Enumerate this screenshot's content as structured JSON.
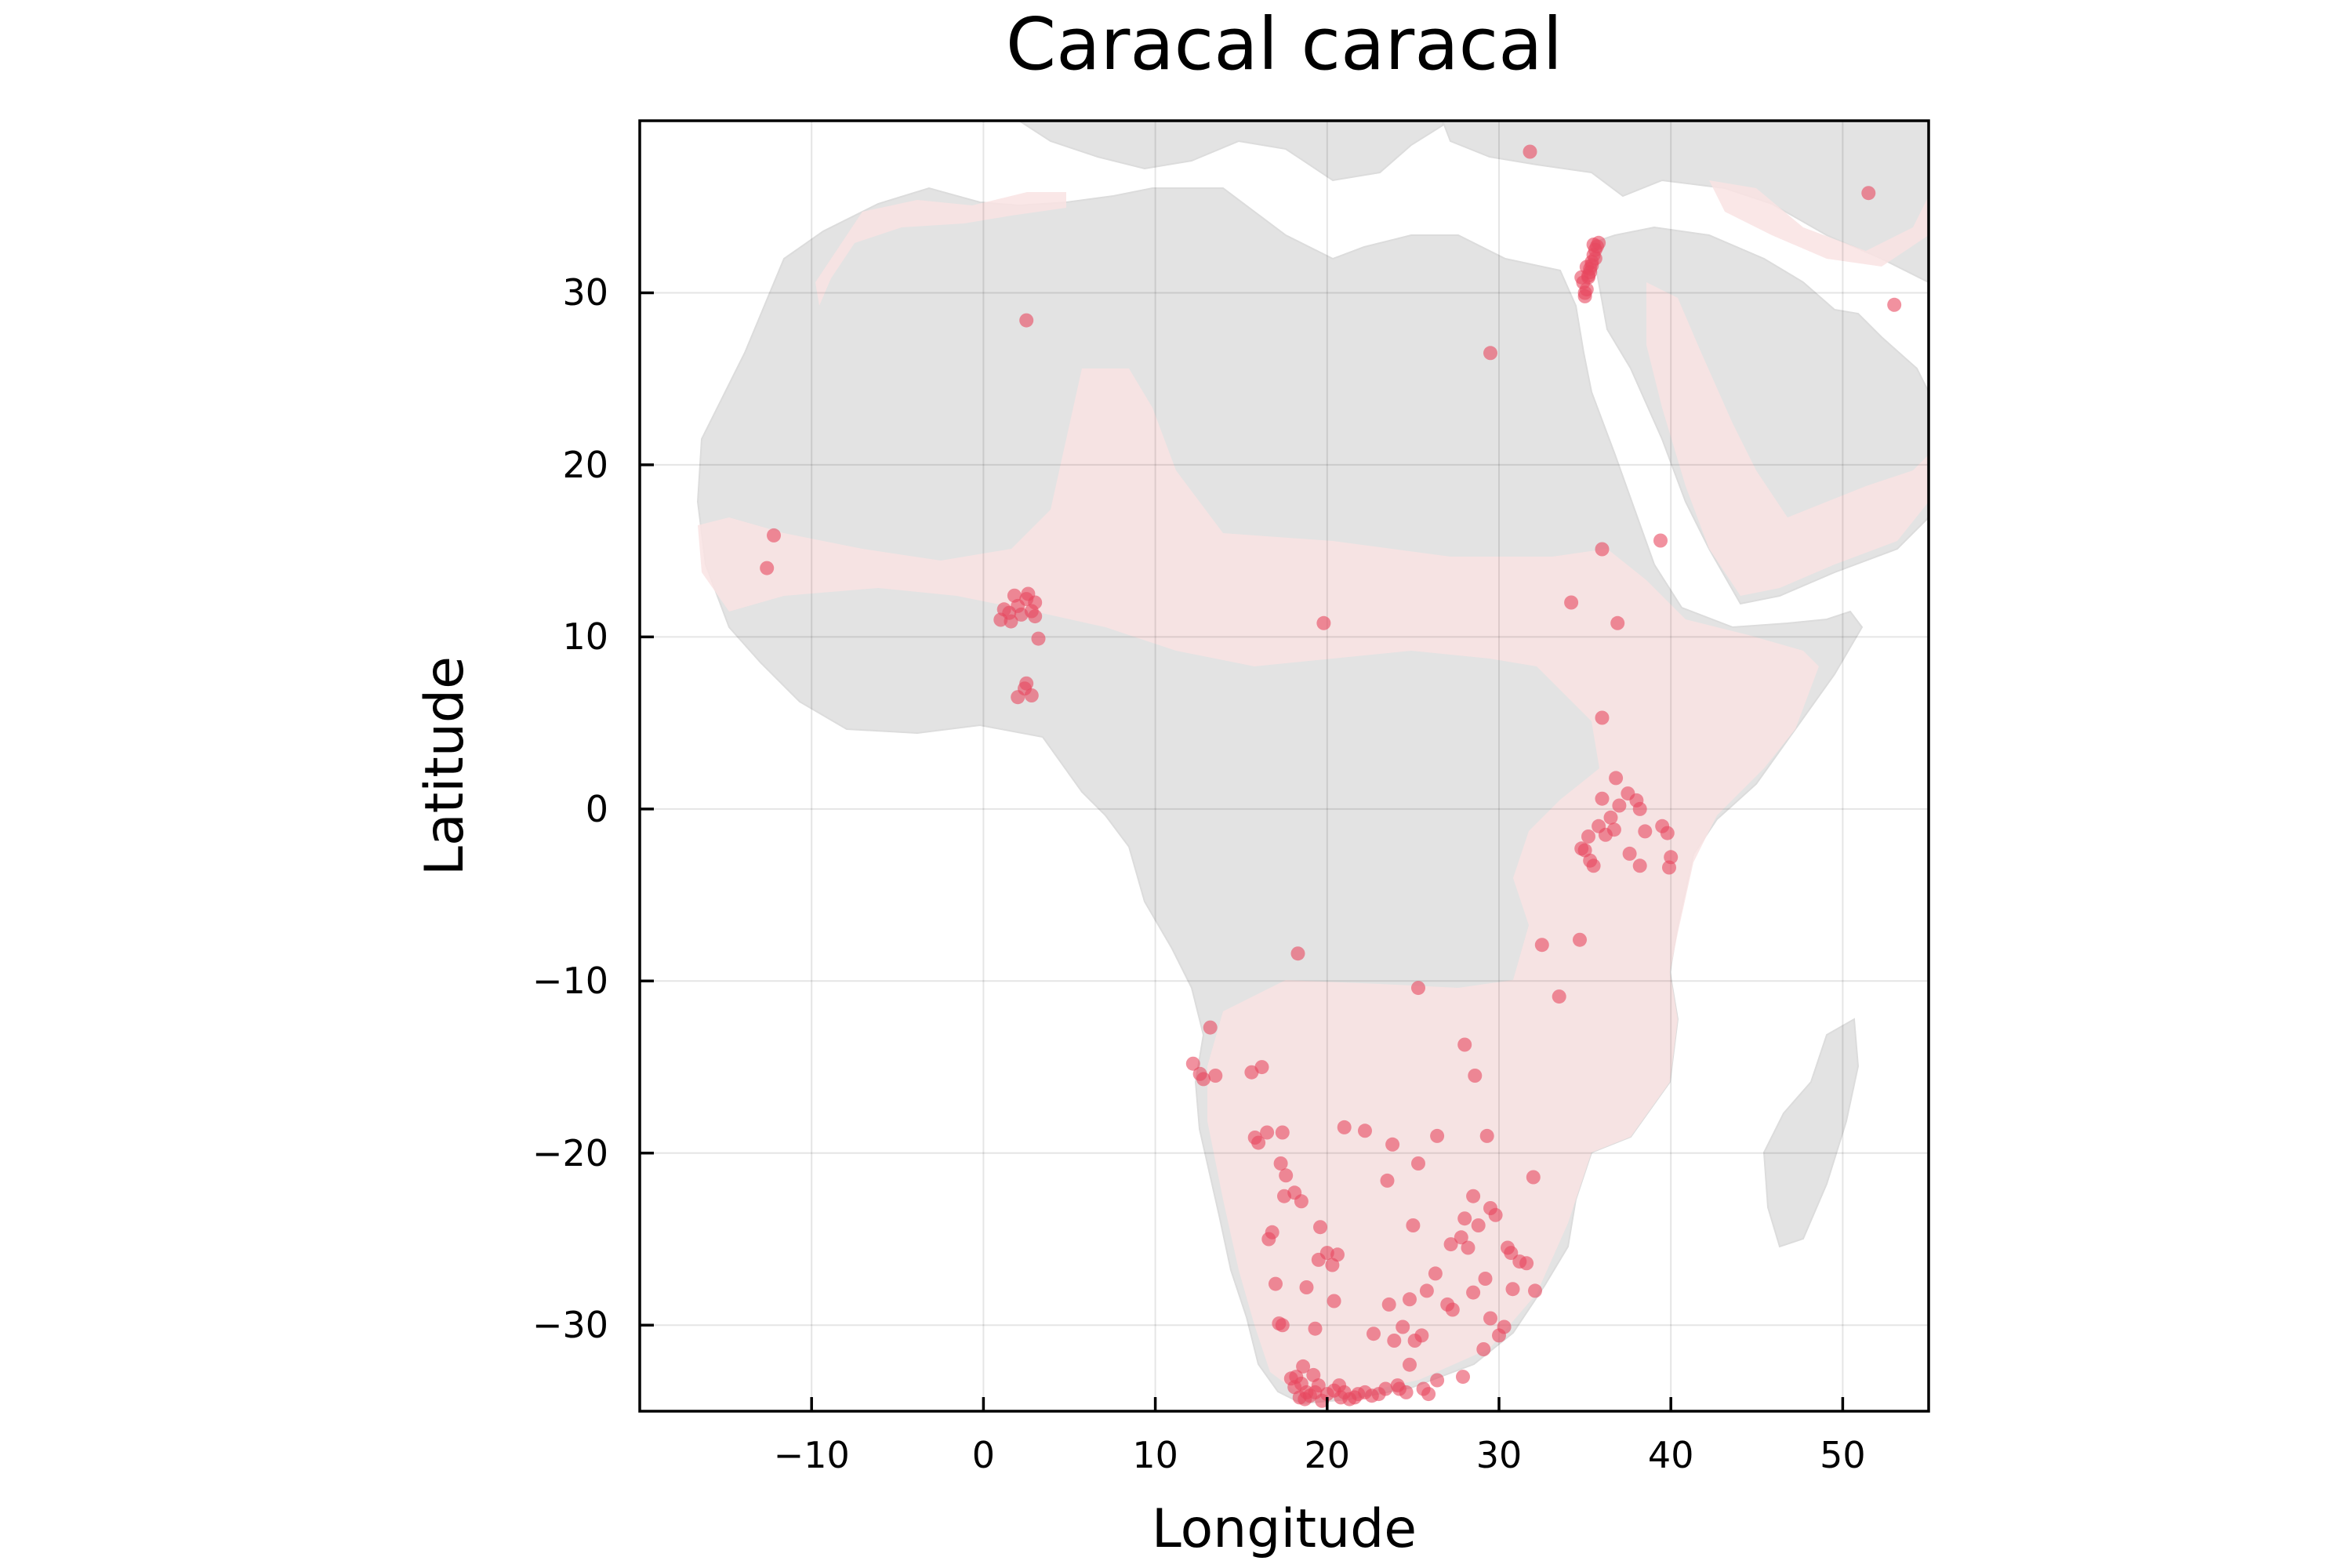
{
  "chart_data": {
    "type": "scatter",
    "title": "Caracal caracal",
    "xlabel": "Longitude",
    "ylabel": "Latitude",
    "xlim": [
      -20,
      55
    ],
    "ylim": [
      -35,
      40
    ],
    "xticks": [
      -10,
      0,
      10,
      20,
      30,
      40,
      50
    ],
    "yticks": [
      -30,
      -20,
      -10,
      0,
      10,
      20,
      30
    ],
    "grid": true,
    "background": "map of Africa and Arabian Peninsula (land in light grey)",
    "range_shading_color": "#f9e3e3",
    "land_color": "#e3e3e3",
    "point_color": "#e8485f",
    "series": [
      {
        "values": [
          [
            35.2,
            31.0
          ],
          [
            35.4,
            31.8
          ],
          [
            35.6,
            32.5
          ],
          [
            35.8,
            32.9
          ],
          [
            35.1,
            30.2
          ],
          [
            35.0,
            29.8
          ],
          [
            35.3,
            31.4
          ],
          [
            35.5,
            32.2
          ],
          [
            34.9,
            30.6
          ],
          [
            35.7,
            32.7
          ],
          [
            35.2,
            30.9
          ],
          [
            35.4,
            31.6
          ],
          [
            35.0,
            30.0
          ],
          [
            35.6,
            32.0
          ],
          [
            35.3,
            31.2
          ],
          [
            35.5,
            32.8
          ],
          [
            35.1,
            31.5
          ],
          [
            34.8,
            30.9
          ],
          [
            51.5,
            35.8
          ],
          [
            53.0,
            29.3
          ],
          [
            31.8,
            38.2
          ],
          [
            29.5,
            26.5
          ],
          [
            2.5,
            28.4
          ],
          [
            -12.2,
            15.9
          ],
          [
            -12.6,
            14.0
          ],
          [
            1.0,
            11.0
          ],
          [
            1.5,
            11.4
          ],
          [
            2.0,
            11.8
          ],
          [
            2.5,
            12.2
          ],
          [
            3.0,
            12.0
          ],
          [
            2.2,
            11.3
          ],
          [
            1.8,
            12.4
          ],
          [
            2.8,
            11.5
          ],
          [
            1.2,
            11.6
          ],
          [
            2.6,
            12.5
          ],
          [
            3.0,
            11.2
          ],
          [
            1.6,
            10.9
          ],
          [
            3.2,
            9.9
          ],
          [
            2.4,
            7.0
          ],
          [
            2.8,
            6.6
          ],
          [
            2.0,
            6.5
          ],
          [
            2.5,
            7.3
          ],
          [
            19.8,
            10.8
          ],
          [
            36.0,
            15.1
          ],
          [
            39.4,
            15.6
          ],
          [
            34.2,
            12.0
          ],
          [
            36.9,
            10.8
          ],
          [
            36.0,
            5.3
          ],
          [
            36.8,
            1.8
          ],
          [
            36.0,
            0.6
          ],
          [
            37.0,
            0.2
          ],
          [
            37.5,
            0.9
          ],
          [
            38.0,
            0.5
          ],
          [
            38.2,
            0.0
          ],
          [
            36.5,
            -0.5
          ],
          [
            35.8,
            -1.0
          ],
          [
            36.2,
            -1.5
          ],
          [
            35.2,
            -1.6
          ],
          [
            35.0,
            -2.4
          ],
          [
            35.3,
            -3.0
          ],
          [
            35.5,
            -3.3
          ],
          [
            36.7,
            -1.2
          ],
          [
            37.6,
            -2.6
          ],
          [
            38.2,
            -3.3
          ],
          [
            39.5,
            -1.0
          ],
          [
            39.8,
            -1.4
          ],
          [
            38.5,
            -1.3
          ],
          [
            40.0,
            -2.8
          ],
          [
            39.9,
            -3.4
          ],
          [
            34.8,
            -2.3
          ],
          [
            34.7,
            -7.6
          ],
          [
            32.5,
            -7.9
          ],
          [
            33.5,
            -10.9
          ],
          [
            25.3,
            -10.4
          ],
          [
            18.3,
            -8.4
          ],
          [
            12.2,
            -14.8
          ],
          [
            12.6,
            -15.4
          ],
          [
            12.8,
            -15.7
          ],
          [
            13.2,
            -12.7
          ],
          [
            13.5,
            -15.5
          ],
          [
            15.6,
            -15.3
          ],
          [
            16.2,
            -15.0
          ],
          [
            15.8,
            -19.1
          ],
          [
            16.0,
            -19.4
          ],
          [
            16.5,
            -18.8
          ],
          [
            17.4,
            -18.8
          ],
          [
            17.3,
            -20.6
          ],
          [
            17.6,
            -21.3
          ],
          [
            18.1,
            -22.3
          ],
          [
            17.5,
            -22.5
          ],
          [
            18.5,
            -22.8
          ],
          [
            16.8,
            -24.6
          ],
          [
            16.6,
            -25.0
          ],
          [
            17.0,
            -27.6
          ],
          [
            18.8,
            -27.8
          ],
          [
            19.5,
            -26.2
          ],
          [
            20.0,
            -25.8
          ],
          [
            20.3,
            -26.5
          ],
          [
            20.6,
            -25.9
          ],
          [
            19.6,
            -24.3
          ],
          [
            21.0,
            -18.5
          ],
          [
            22.2,
            -18.7
          ],
          [
            23.8,
            -19.5
          ],
          [
            23.5,
            -21.6
          ],
          [
            25.3,
            -20.6
          ],
          [
            25.0,
            -24.2
          ],
          [
            26.4,
            -19.0
          ],
          [
            28.0,
            -13.7
          ],
          [
            28.6,
            -15.5
          ],
          [
            29.3,
            -19.0
          ],
          [
            28.5,
            -22.5
          ],
          [
            32.0,
            -21.4
          ],
          [
            28.0,
            -23.8
          ],
          [
            27.8,
            -24.9
          ],
          [
            27.2,
            -25.3
          ],
          [
            28.2,
            -25.5
          ],
          [
            28.8,
            -24.2
          ],
          [
            29.5,
            -23.2
          ],
          [
            29.8,
            -23.6
          ],
          [
            30.5,
            -25.5
          ],
          [
            30.7,
            -25.8
          ],
          [
            31.2,
            -26.3
          ],
          [
            31.6,
            -26.4
          ],
          [
            32.1,
            -28.0
          ],
          [
            30.8,
            -27.9
          ],
          [
            29.2,
            -27.3
          ],
          [
            28.5,
            -28.1
          ],
          [
            27.0,
            -28.8
          ],
          [
            27.3,
            -29.1
          ],
          [
            26.3,
            -27.0
          ],
          [
            25.8,
            -28.0
          ],
          [
            24.8,
            -28.5
          ],
          [
            23.6,
            -28.8
          ],
          [
            20.4,
            -28.6
          ],
          [
            19.3,
            -30.2
          ],
          [
            17.2,
            -29.9
          ],
          [
            17.4,
            -30.0
          ],
          [
            22.7,
            -30.5
          ],
          [
            23.9,
            -30.9
          ],
          [
            24.4,
            -30.1
          ],
          [
            25.1,
            -30.9
          ],
          [
            25.5,
            -30.6
          ],
          [
            29.5,
            -29.6
          ],
          [
            30.0,
            -30.6
          ],
          [
            30.3,
            -30.1
          ],
          [
            29.1,
            -31.4
          ],
          [
            27.9,
            -33.0
          ],
          [
            26.4,
            -33.2
          ],
          [
            24.8,
            -32.3
          ],
          [
            18.2,
            -33.0
          ],
          [
            18.5,
            -33.4
          ],
          [
            18.8,
            -33.9
          ],
          [
            19.0,
            -34.1
          ],
          [
            18.4,
            -34.2
          ],
          [
            18.6,
            -32.4
          ],
          [
            19.2,
            -32.9
          ],
          [
            19.5,
            -33.5
          ],
          [
            20.0,
            -34.0
          ],
          [
            20.4,
            -33.8
          ],
          [
            20.8,
            -34.2
          ],
          [
            21.3,
            -34.3
          ],
          [
            21.8,
            -34.0
          ],
          [
            22.2,
            -33.9
          ],
          [
            22.6,
            -34.1
          ],
          [
            23.4,
            -33.7
          ],
          [
            24.1,
            -33.5
          ],
          [
            24.6,
            -33.9
          ],
          [
            25.6,
            -33.7
          ],
          [
            25.9,
            -34.0
          ],
          [
            17.9,
            -33.1
          ],
          [
            18.1,
            -33.6
          ],
          [
            19.7,
            -34.4
          ],
          [
            20.7,
            -33.5
          ],
          [
            21.0,
            -33.9
          ],
          [
            23.0,
            -34.0
          ],
          [
            19.3,
            -33.9
          ],
          [
            18.7,
            -34.3
          ],
          [
            21.6,
            -34.2
          ],
          [
            24.2,
            -33.7
          ]
        ]
      }
    ]
  }
}
